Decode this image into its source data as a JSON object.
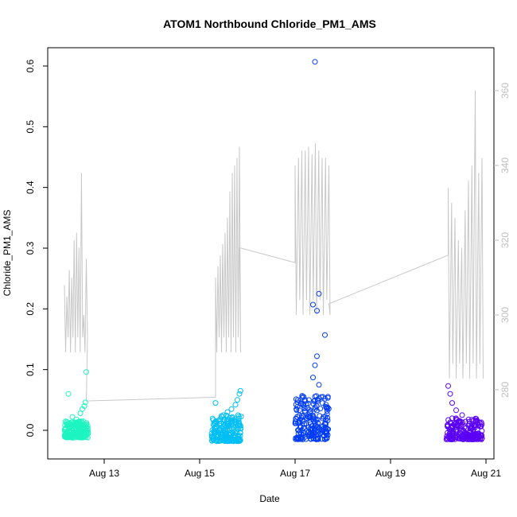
{
  "chart_data": {
    "type": "scatter",
    "title": "ATOM1 Northbound Chloride_PM1_AMS",
    "xlabel": "Date",
    "ylabel": "Chloride_PM1_AMS",
    "xlim": [
      "2016-08-12",
      "2016-08-21"
    ],
    "ylim": [
      -0.04,
      0.62
    ],
    "xticks": [
      "Aug 13",
      "Aug 15",
      "Aug 17",
      "Aug 19",
      "Aug 21"
    ],
    "yticks": [
      "0.0",
      "0.1",
      "0.2",
      "0.3",
      "0.4",
      "0.5",
      "0.6"
    ],
    "y2lim": [
      262,
      367
    ],
    "y2ticks": [
      "280",
      "300",
      "320",
      "340",
      "360"
    ],
    "grid": false,
    "legend": "none",
    "series": [
      {
        "marker": "open-circle",
        "color": "#1DF5C1",
        "points": [
          {
            "x": "2016-08-12 06:00",
            "y": 0.06
          },
          {
            "x": "2016-08-12 08:00",
            "y": 0.022
          },
          {
            "x": "2016-08-12 10:00",
            "y": 0.018
          },
          {
            "x": "2016-08-12 12:00",
            "y": 0.028
          },
          {
            "x": "2016-08-12 13:00",
            "y": 0.035
          },
          {
            "x": "2016-08-12 14:00",
            "y": 0.04
          },
          {
            "x": "2016-08-12 14:30",
            "y": 0.046
          },
          {
            "x": "2016-08-12 15:00",
            "y": 0.096
          }
        ],
        "cluster": {
          "x_start": "2016-08-12 04:00",
          "x_end": "2016-08-12 16:00",
          "y_min": -0.012,
          "y_max": 0.015
        }
      },
      {
        "marker": "open-circle",
        "color": "#00BFF5",
        "points": [
          {
            "x": "2016-08-15 08:00",
            "y": 0.045
          },
          {
            "x": "2016-08-15 12:00",
            "y": 0.025
          },
          {
            "x": "2016-08-15 14:00",
            "y": 0.03
          },
          {
            "x": "2016-08-15 16:00",
            "y": 0.035
          },
          {
            "x": "2016-08-15 18:00",
            "y": 0.042
          },
          {
            "x": "2016-08-15 19:00",
            "y": 0.05
          },
          {
            "x": "2016-08-15 20:00",
            "y": 0.06
          },
          {
            "x": "2016-08-15 20:30",
            "y": 0.065
          }
        ],
        "cluster": {
          "x_start": "2016-08-15 06:00",
          "x_end": "2016-08-15 21:00",
          "y_min": -0.018,
          "y_max": 0.025
        }
      },
      {
        "marker": "open-circle",
        "color": "#003CF5",
        "points": [
          {
            "x": "2016-08-17 10:00",
            "y": 0.607
          },
          {
            "x": "2016-08-17 09:00",
            "y": 0.207
          },
          {
            "x": "2016-08-17 11:00",
            "y": 0.197
          },
          {
            "x": "2016-08-17 12:00",
            "y": 0.225
          },
          {
            "x": "2016-08-17 15:00",
            "y": 0.157
          },
          {
            "x": "2016-08-17 11:00",
            "y": 0.122
          },
          {
            "x": "2016-08-17 10:00",
            "y": 0.107
          },
          {
            "x": "2016-08-17 09:00",
            "y": 0.087
          },
          {
            "x": "2016-08-17 12:00",
            "y": 0.075
          },
          {
            "x": "2016-08-17 14:00",
            "y": 0.055
          },
          {
            "x": "2016-08-17 15:00",
            "y": 0.052
          }
        ],
        "cluster": {
          "x_start": "2016-08-17 00:00",
          "x_end": "2016-08-17 17:00",
          "y_min": -0.015,
          "y_max": 0.06
        }
      },
      {
        "marker": "open-circle",
        "color": "#5A00F5",
        "points": [
          {
            "x": "2016-08-20 05:00",
            "y": 0.073
          },
          {
            "x": "2016-08-20 06:00",
            "y": 0.06
          },
          {
            "x": "2016-08-20 07:00",
            "y": 0.045
          },
          {
            "x": "2016-08-20 09:00",
            "y": 0.033
          },
          {
            "x": "2016-08-20 12:00",
            "y": 0.025
          }
        ],
        "cluster": {
          "x_start": "2016-08-20 04:00",
          "x_end": "2016-08-20 22:00",
          "y_min": -0.015,
          "y_max": 0.02
        }
      }
    ],
    "secondary_series": {
      "type": "line",
      "axis": "right",
      "color": "#c8c8c8",
      "segments": [
        {
          "x_start": "2016-08-12 04:00",
          "x_end": "2016-08-12 15:00",
          "base": 290,
          "peaks": [
            308,
            305,
            312,
            310,
            320,
            322,
            318,
            338,
            300,
            315
          ]
        },
        {
          "x": [
            "2016-08-12 15:00",
            "2016-08-15 08:00"
          ],
          "y": [
            277,
            278
          ]
        },
        {
          "x_start": "2016-08-15 08:00",
          "x_end": "2016-08-15 20:00",
          "base": 290,
          "peaks": [
            310,
            313,
            316,
            319,
            322,
            326,
            333,
            338,
            340,
            342,
            345
          ]
        },
        {
          "x": [
            "2016-08-15 20:00",
            "2016-08-17 00:00"
          ],
          "y": [
            318,
            314
          ]
        },
        {
          "x_start": "2016-08-17 00:00",
          "x_end": "2016-08-17 17:00",
          "base": 300,
          "peaks": [
            340,
            342,
            344,
            344,
            345,
            343,
            346,
            344,
            342,
            342,
            340
          ]
        },
        {
          "x": [
            "2016-08-17 17:00",
            "2016-08-20 05:00"
          ],
          "y": [
            303,
            316
          ]
        },
        {
          "x_start": "2016-08-20 05:00",
          "x_end": "2016-08-20 22:00",
          "base": 283,
          "peaks": [
            334,
            330,
            326,
            320,
            318,
            328,
            336,
            340,
            360,
            338,
            342
          ]
        }
      ]
    }
  }
}
